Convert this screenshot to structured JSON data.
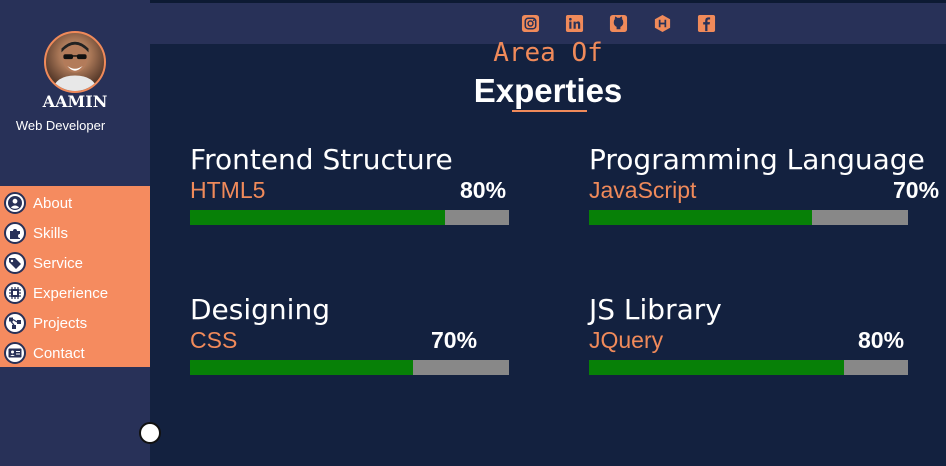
{
  "profile": {
    "name": "AAMIN",
    "role": "Web Developer"
  },
  "social": [
    {
      "icon": "instagram-icon"
    },
    {
      "icon": "linkedin-icon"
    },
    {
      "icon": "github-icon"
    },
    {
      "icon": "hashnode-icon"
    },
    {
      "icon": "facebook-icon"
    }
  ],
  "nav": [
    {
      "label": "About",
      "icon": "user-icon"
    },
    {
      "label": "Skills",
      "icon": "puzzle-icon"
    },
    {
      "label": "Service",
      "icon": "tag-icon"
    },
    {
      "label": "Experience",
      "icon": "chip-icon"
    },
    {
      "label": "Projects",
      "icon": "network-icon"
    },
    {
      "label": "Contact",
      "icon": "id-card-icon"
    }
  ],
  "heading": {
    "small": "Area Of",
    "big": "Experties"
  },
  "skills": [
    {
      "title": "Frontend Structure",
      "name": "HTML5",
      "percent": "80%",
      "value": 0.8
    },
    {
      "title": "Programming Language",
      "name": "JavaScript",
      "percent": "70%",
      "value": 0.7
    },
    {
      "title": "Designing",
      "name": "CSS",
      "percent": "70%",
      "value": 0.7
    },
    {
      "title": "JS Library",
      "name": "JQuery",
      "percent": "80%",
      "value": 0.8
    }
  ],
  "colors": {
    "accent": "#f08a5a",
    "sidebar": "#283158",
    "background": "#13213f",
    "bar_fill": "#078007",
    "bar_track": "#888888"
  }
}
